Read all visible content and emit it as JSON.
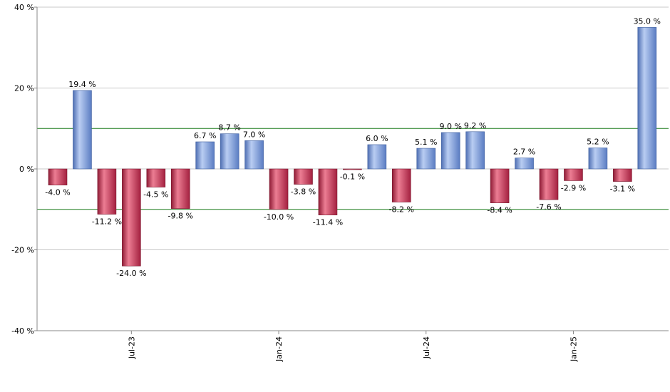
{
  "chart_data": {
    "type": "bar",
    "title": "",
    "xlabel": "",
    "ylabel": "",
    "ylim": [
      -40,
      40
    ],
    "yticks": [
      40,
      20,
      0,
      -20,
      -40
    ],
    "ytick_labels": [
      "40 %",
      "20 %",
      "0 %",
      "-20 %",
      "-40 %"
    ],
    "xtick_labels": [
      "Jul-23",
      "Jan-24",
      "Jul-24",
      "Jan-25"
    ],
    "xtick_bar_index": [
      3,
      9,
      15,
      21
    ],
    "reference_lines": [
      10,
      -10
    ],
    "grid": true,
    "values": [
      -4.0,
      19.4,
      -11.2,
      -24.0,
      -4.5,
      -9.8,
      6.7,
      8.7,
      7.0,
      -10.0,
      -3.8,
      -11.4,
      -0.1,
      6.0,
      -8.2,
      5.1,
      9.0,
      9.2,
      -8.4,
      2.7,
      -7.6,
      -2.9,
      5.2,
      -3.1,
      35.0
    ],
    "labels": [
      "-4.0 %",
      "19.4 %",
      "-11.2 %",
      "-24.0 %",
      "-4.5 %",
      "-9.8 %",
      "6.7 %",
      "8.7 %",
      "7.0 %",
      "-10.0 %",
      "-3.8 %",
      "-11.4 %",
      "-0.1 %",
      "6.0 %",
      "-8.2 %",
      "5.1 %",
      "9.0 %",
      "9.2 %",
      "-8.4 %",
      "2.7 %",
      "-7.6 %",
      "-2.9 %",
      "5.2 %",
      "-3.1 %",
      "35.0 %"
    ],
    "colors": {
      "positive": "#7f9fd8",
      "negative": "#c8334f",
      "reference_line": "#1a7a1a",
      "grid": "#c8c8c8"
    }
  }
}
